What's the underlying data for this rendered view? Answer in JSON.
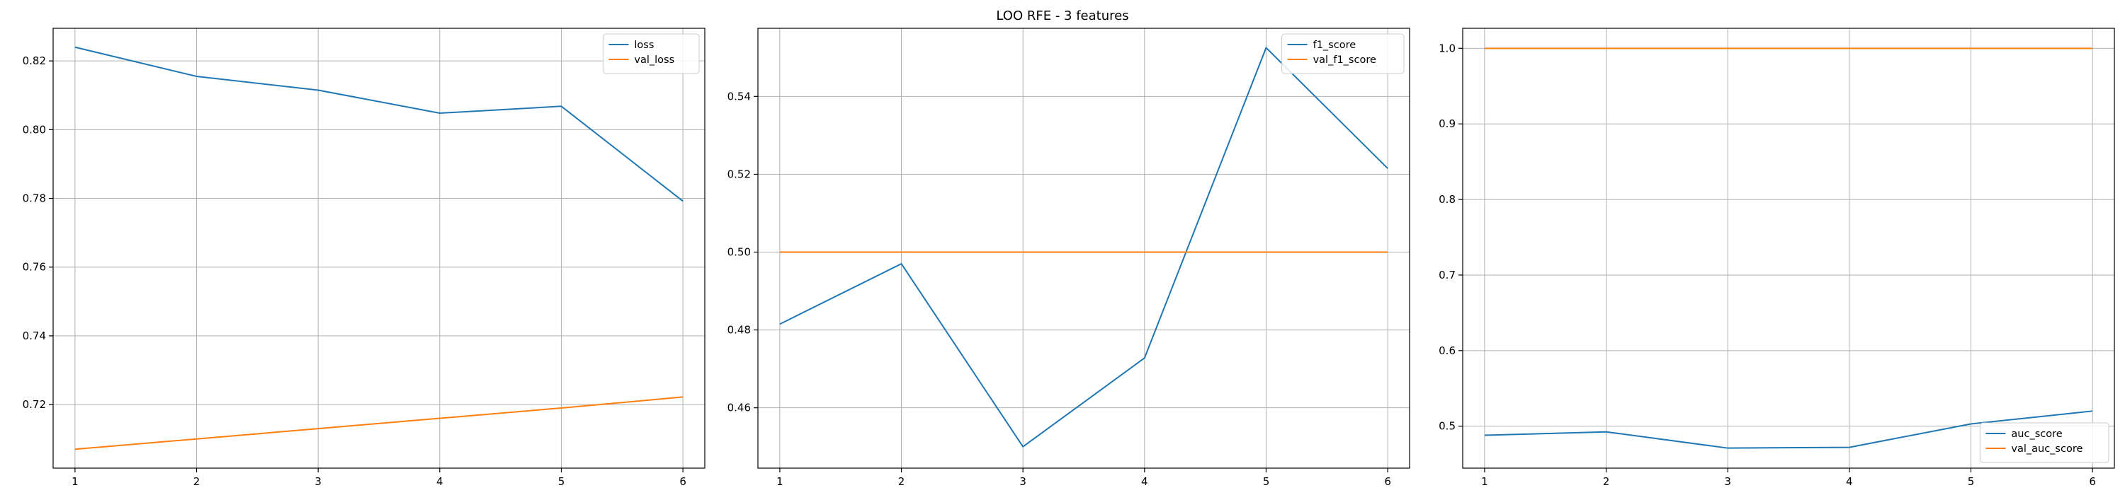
{
  "chart_data": {
    "suptitle": "LOO RFE - 3 features",
    "panels": [
      {
        "type": "line",
        "title": "",
        "xlabel": "",
        "ylabel": "",
        "xlim": [
          0.82,
          6.18
        ],
        "ylim": [
          0.7015,
          0.8295
        ],
        "xticks": [
          1,
          2,
          3,
          4,
          5,
          6
        ],
        "xtick_labels": [
          "1",
          "2",
          "3",
          "4",
          "5",
          "6"
        ],
        "yticks": [
          0.72,
          0.74,
          0.76,
          0.78,
          0.8,
          0.82
        ],
        "ytick_labels": [
          "0.72",
          "0.74",
          "0.76",
          "0.78",
          "0.80",
          "0.82"
        ],
        "grid": true,
        "legend": "upper-right",
        "series": [
          {
            "name": "loss",
            "color": "#1f77b4",
            "x": [
              1,
              2,
              3,
              4,
              5,
              6
            ],
            "y": [
              0.824,
              0.8155,
              0.8115,
              0.8048,
              0.8068,
              0.7792
            ]
          },
          {
            "name": "val_loss",
            "color": "#ff7f0e",
            "x": [
              1,
              2,
              3,
              4,
              5,
              6
            ],
            "y": [
              0.707,
              0.71,
              0.713,
              0.716,
              0.719,
              0.7222
            ]
          }
        ]
      },
      {
        "type": "line",
        "title": "",
        "xlabel": "",
        "ylabel": "",
        "xlim": [
          0.82,
          6.18
        ],
        "ylim": [
          0.4445,
          0.5575
        ],
        "xticks": [
          1,
          2,
          3,
          4,
          5,
          6
        ],
        "xtick_labels": [
          "1",
          "2",
          "3",
          "4",
          "5",
          "6"
        ],
        "yticks": [
          0.46,
          0.48,
          0.5,
          0.52,
          0.54
        ],
        "ytick_labels": [
          "0.46",
          "0.48",
          "0.50",
          "0.52",
          "0.54"
        ],
        "grid": true,
        "legend": "upper-right",
        "series": [
          {
            "name": "f1_score",
            "color": "#1f77b4",
            "x": [
              1,
              2,
              3,
              4,
              5,
              6
            ],
            "y": [
              0.4815,
              0.497,
              0.45,
              0.4728,
              0.5525,
              0.5215
            ]
          },
          {
            "name": "val_f1_score",
            "color": "#ff7f0e",
            "x": [
              1,
              2,
              3,
              4,
              5,
              6
            ],
            "y": [
              0.5,
              0.5,
              0.5,
              0.5,
              0.5,
              0.5
            ]
          }
        ]
      },
      {
        "type": "line",
        "title": "",
        "xlabel": "",
        "ylabel": "",
        "xlim": [
          0.82,
          6.18
        ],
        "ylim": [
          0.4445,
          1.0265
        ],
        "xticks": [
          1,
          2,
          3,
          4,
          5,
          6
        ],
        "xtick_labels": [
          "1",
          "2",
          "3",
          "4",
          "5",
          "6"
        ],
        "yticks": [
          0.5,
          0.6,
          0.7,
          0.8,
          0.9,
          1.0
        ],
        "ytick_labels": [
          "0.5",
          "0.6",
          "0.7",
          "0.8",
          "0.9",
          "1.0"
        ],
        "grid": true,
        "legend": "lower-right",
        "series": [
          {
            "name": "auc_score",
            "color": "#1f77b4",
            "x": [
              1,
              2,
              3,
              4,
              5,
              6
            ],
            "y": [
              0.488,
              0.4925,
              0.471,
              0.472,
              0.503,
              0.52
            ]
          },
          {
            "name": "val_auc_score",
            "color": "#ff7f0e",
            "x": [
              1,
              2,
              3,
              4,
              5,
              6
            ],
            "y": [
              1.0,
              1.0,
              1.0,
              1.0,
              1.0,
              1.0
            ]
          }
        ]
      }
    ]
  }
}
